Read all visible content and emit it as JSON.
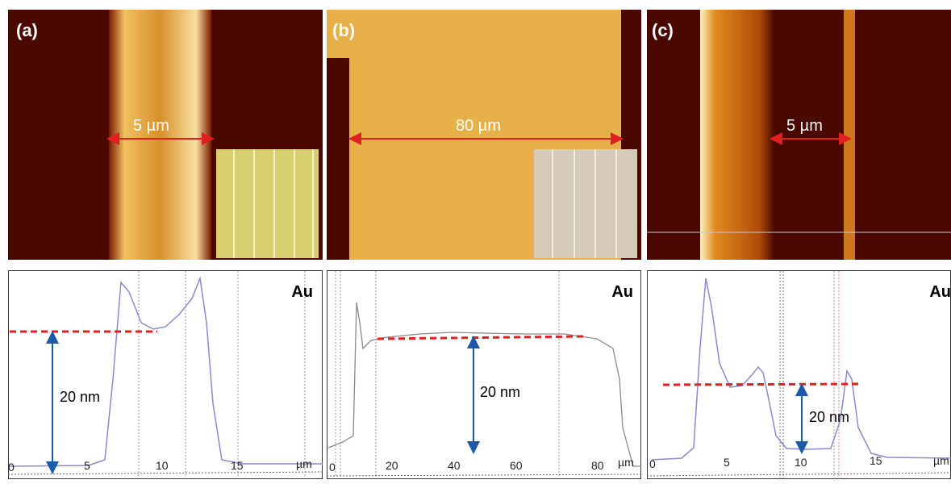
{
  "panels": [
    {
      "label": "(a)",
      "scale_bar": "5 µm",
      "element": "Au",
      "height_label": "20 nm",
      "x_ticks": [
        "0",
        "5",
        "10",
        "15"
      ],
      "x_unit": "µm"
    },
    {
      "label": "(b)",
      "scale_bar": "80 µm",
      "element": "Au",
      "height_label": "20 nm",
      "x_ticks": [
        "0",
        "20",
        "40",
        "60",
        "80"
      ],
      "x_unit": "µm"
    },
    {
      "label": "(c)",
      "scale_bar": "5 µm",
      "element": "Au",
      "height_label": "20 nm",
      "x_ticks": [
        "0",
        "5",
        "10",
        "15"
      ],
      "x_unit": "µm"
    }
  ]
}
